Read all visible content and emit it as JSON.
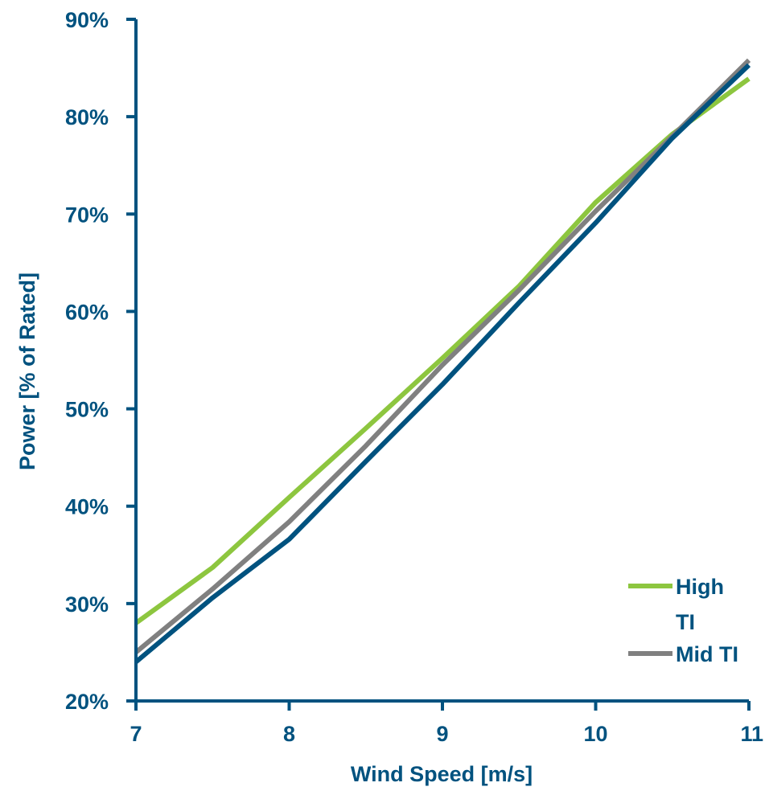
{
  "chart_data": {
    "type": "line",
    "title": "",
    "xlabel": "Wind Speed [m/s]",
    "ylabel": "Power [% of Rated]",
    "xlim": [
      7,
      11
    ],
    "ylim": [
      20,
      90
    ],
    "x_ticks": [
      7,
      8,
      9,
      10,
      11
    ],
    "x_tick_labels": [
      "7",
      "8",
      "9",
      "10",
      "11"
    ],
    "y_ticks": [
      20,
      30,
      40,
      50,
      60,
      70,
      80,
      90
    ],
    "y_tick_labels": [
      "20%",
      "30%",
      "40%",
      "50%",
      "60%",
      "70%",
      "80%",
      "90%"
    ],
    "grid": false,
    "legend_position": "bottom-right",
    "series": [
      {
        "name": "High TI",
        "color": "#8DC63F",
        "x": [
          7,
          7.5,
          8,
          8.5,
          9,
          9.5,
          10,
          10.5,
          11
        ],
        "y": [
          28,
          33.7,
          40.9,
          48,
          55.2,
          62.6,
          71.2,
          78.2,
          83.9
        ]
      },
      {
        "name": "Mid TI",
        "color": "#808080",
        "x": [
          7,
          7.5,
          8,
          8.5,
          9,
          9.5,
          10,
          10.5,
          11
        ],
        "y": [
          25,
          31.5,
          38.4,
          46.2,
          54.5,
          62.2,
          70.3,
          78,
          85.8
        ]
      },
      {
        "name": "",
        "color": "#00527F",
        "x": [
          7,
          7.5,
          8,
          8.5,
          9,
          9.5,
          10,
          10.5,
          11
        ],
        "y": [
          24,
          30.6,
          36.6,
          44.6,
          52.5,
          60.9,
          69.1,
          77.8,
          85.3
        ]
      }
    ]
  },
  "colors": {
    "axis": "#00527F",
    "text": "#00527F"
  }
}
